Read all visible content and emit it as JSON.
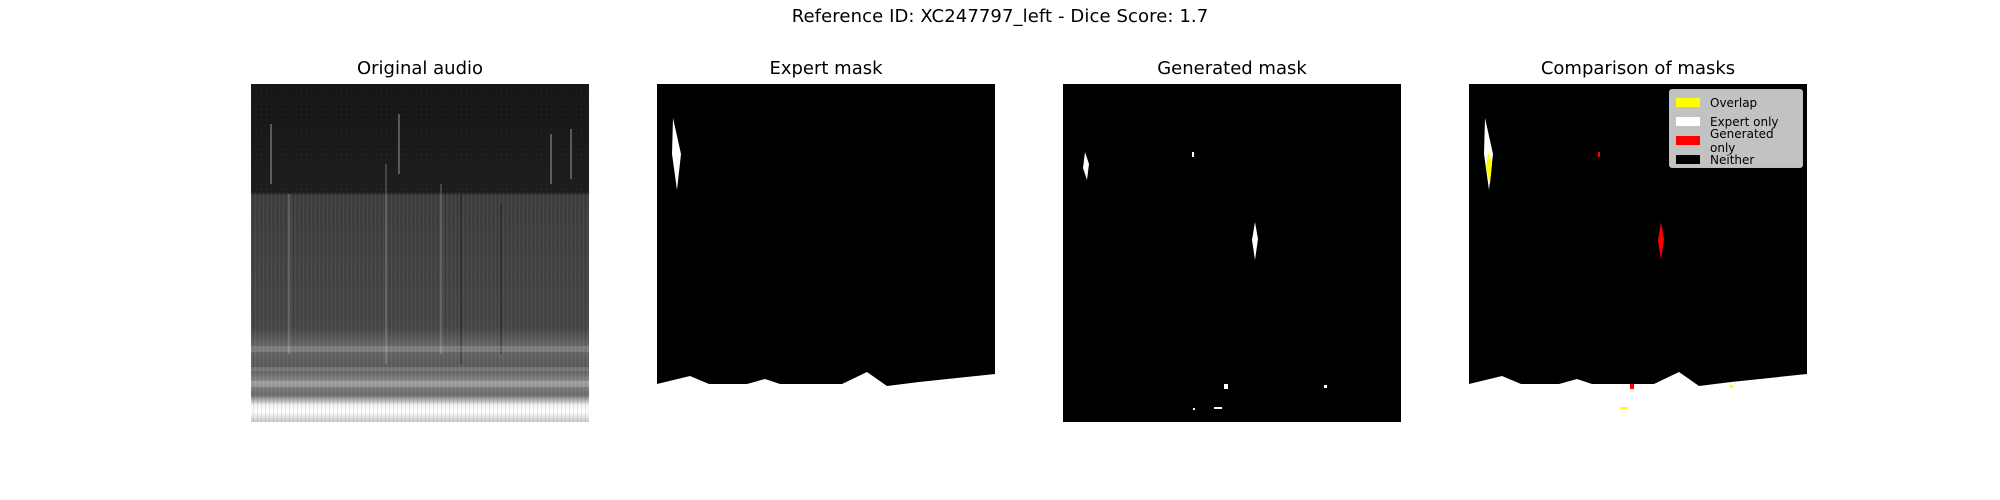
{
  "figure": {
    "suptitle": "Reference ID: XC247797_left - Dice Score: 1.7"
  },
  "chart_data": [
    {
      "type": "heatmap",
      "title": "Original audio",
      "description_kind": "spectrogram",
      "colormap": "gray",
      "axes": "off"
    },
    {
      "type": "heatmap",
      "title": "Expert mask",
      "colormap": "binary",
      "axes": "off"
    },
    {
      "type": "heatmap",
      "title": "Generated mask",
      "colormap": "binary",
      "axes": "off"
    },
    {
      "type": "heatmap",
      "title": "Comparison of masks",
      "axes": "off",
      "legend_position": "top-right",
      "legend": [
        {
          "label": "Overlap",
          "color": "#ffff00"
        },
        {
          "label": "Expert only",
          "color": "#ffffff"
        },
        {
          "label": "Generated only",
          "color": "#ff0000"
        },
        {
          "label": "Neither",
          "color": "#000000"
        }
      ]
    }
  ]
}
